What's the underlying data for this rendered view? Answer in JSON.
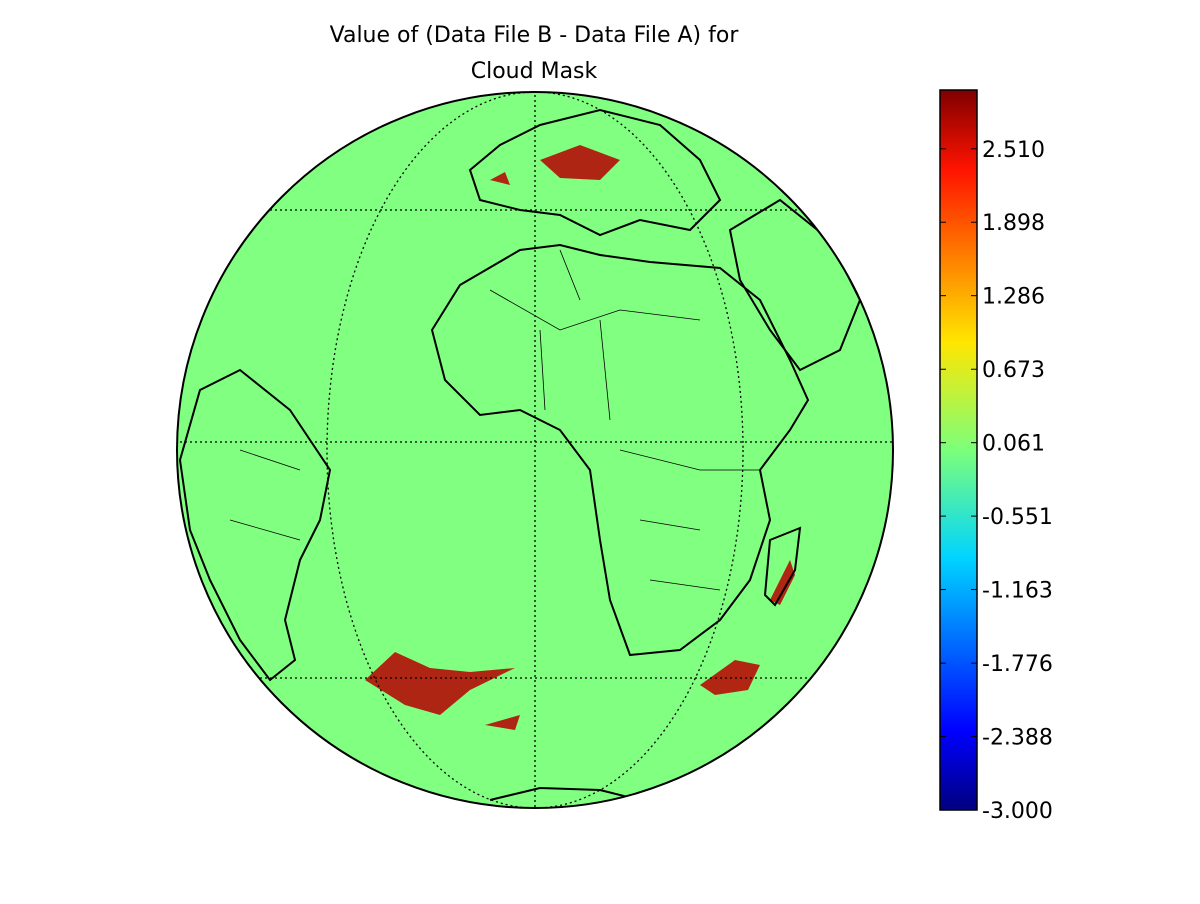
{
  "chart_data": {
    "type": "colormap-globe",
    "title_lines": [
      "Value of (Data File B - Data File A) for",
      "Cloud Mask"
    ],
    "colormap": "jet",
    "ylim": [
      -3.0,
      3.0
    ],
    "yticks": [
      {
        "value": -3.0,
        "label": "-3.000"
      },
      -2.388,
      -1.776,
      -1.163,
      -0.551,
      0.061,
      0.673,
      1.286,
      1.898,
      {
        "value": 2.51,
        "label": "2.510"
      }
    ]
  }
}
